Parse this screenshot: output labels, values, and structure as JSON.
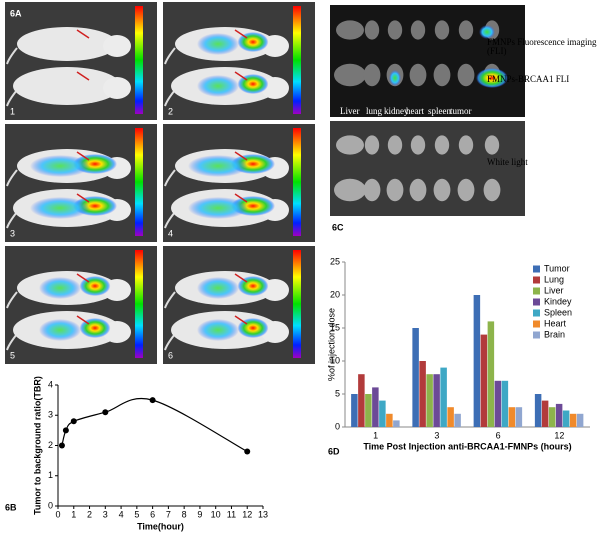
{
  "figure": {
    "panel_a": {
      "label": "6A",
      "images": [
        "1",
        "2",
        "3",
        "4",
        "5",
        "6"
      ]
    },
    "panel_c": {
      "label": "6C",
      "organs": [
        "Liver",
        "lung",
        "kidney",
        "heart",
        "spleen",
        "tumor"
      ],
      "rows": [
        "FMNPs Fluorescence imaging (FLI)",
        "FMNPs-BRCAA1 FLI",
        "White light"
      ]
    }
  },
  "chart_data": [
    {
      "type": "line",
      "label": "6B",
      "x": [
        0.25,
        0.5,
        1,
        3,
        6,
        12
      ],
      "values": [
        2.0,
        2.5,
        2.8,
        3.1,
        3.5,
        1.8
      ],
      "color": "#000000",
      "xlim": [
        0,
        13
      ],
      "xticks": [
        0,
        1,
        2,
        3,
        4,
        5,
        6,
        7,
        8,
        9,
        10,
        11,
        12,
        13
      ],
      "ylim": [
        0,
        4
      ],
      "yticks": [
        0,
        1,
        2,
        3,
        4
      ],
      "x_label": "Time(hour)",
      "y_label": "Tumor to background ratio(TBR)",
      "smooth": true
    },
    {
      "type": "bar",
      "label": "6D",
      "categories": [
        "1",
        "3",
        "6",
        "12"
      ],
      "series": [
        {
          "name": "Tumor",
          "color": "#3d6eb5",
          "values": [
            5,
            15,
            20,
            5
          ]
        },
        {
          "name": "Lung",
          "color": "#b23b3b",
          "values": [
            8,
            10,
            14,
            4
          ]
        },
        {
          "name": "Liver",
          "color": "#8db44b",
          "values": [
            5,
            8,
            16,
            3
          ]
        },
        {
          "name": "Kindey",
          "color": "#6c4a97",
          "values": [
            6,
            8,
            7,
            3.5
          ]
        },
        {
          "name": "Spleen",
          "color": "#3ea8c5",
          "values": [
            4,
            9,
            7,
            2.5
          ]
        },
        {
          "name": "Heart",
          "color": "#f08a2b",
          "values": [
            2,
            3,
            3,
            2
          ]
        },
        {
          "name": "Brain",
          "color": "#90a6d0",
          "values": [
            1,
            2,
            3,
            2
          ]
        }
      ],
      "ylim": [
        0,
        25
      ],
      "yticks": [
        0,
        5,
        10,
        15,
        20,
        25
      ],
      "x_label": "Time Post  Injection anti-BRCAA1-FMNPs  (hours)",
      "y_label": "%of injection dose",
      "legend": "upper right"
    }
  ]
}
